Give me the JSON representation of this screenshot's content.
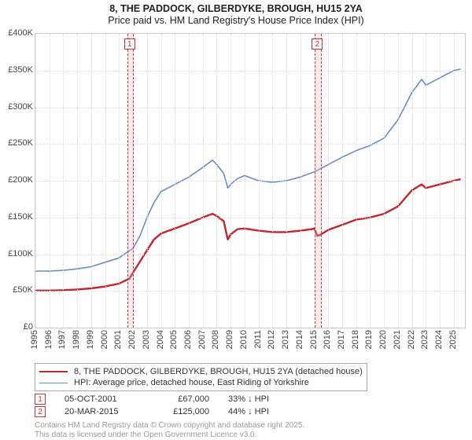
{
  "title": "8, THE PADDOCK, GILBERDYKE, BROUGH, HU15 2YA",
  "subtitle": "Price paid vs. HM Land Registry's House Price Index (HPI)",
  "chart": {
    "type": "line",
    "background_color": "#ffffff",
    "grid_color": "#dcdcdc",
    "axis_color": "#cccccc",
    "title_fontsize": 12.5,
    "label_fontsize": 11,
    "xlim": [
      1995,
      2025.8
    ],
    "ylim": [
      0,
      400000
    ],
    "ytick_step": 50000,
    "xticks": [
      1995,
      1996,
      1997,
      1998,
      1999,
      2000,
      2001,
      2002,
      2003,
      2004,
      2005,
      2006,
      2007,
      2008,
      2009,
      2010,
      2011,
      2012,
      2013,
      2014,
      2015,
      2016,
      2017,
      2018,
      2019,
      2020,
      2021,
      2022,
      2023,
      2024,
      2025
    ],
    "yticks": [
      "£0",
      "£50K",
      "£100K",
      "£150K",
      "£200K",
      "£250K",
      "£300K",
      "£350K",
      "£400K"
    ],
    "markers": [
      {
        "id": "1",
        "x": 2001.76,
        "width_years": 0.35
      },
      {
        "id": "2",
        "x": 2015.22,
        "width_years": 0.35
      }
    ]
  },
  "series": {
    "property": {
      "label": "8, THE PADDOCK, GILBERDYKE, BROUGH, HU15 2YA (detached house)",
      "color": "#c1272d",
      "width": 2.4,
      "data": [
        [
          1995,
          50500
        ],
        [
          1996,
          50500
        ],
        [
          1997,
          51000
        ],
        [
          1998,
          52000
        ],
        [
          1999,
          53500
        ],
        [
          2000,
          56000
        ],
        [
          2001,
          60000
        ],
        [
          2001.76,
          67000
        ],
        [
          2002,
          75000
        ],
        [
          2002.5,
          90000
        ],
        [
          2003,
          105000
        ],
        [
          2003.5,
          120000
        ],
        [
          2004,
          128000
        ],
        [
          2005,
          135000
        ],
        [
          2006,
          142000
        ],
        [
          2007,
          150000
        ],
        [
          2007.7,
          155000
        ],
        [
          2008,
          152000
        ],
        [
          2008.5,
          145000
        ],
        [
          2008.8,
          120000
        ],
        [
          2009,
          127000
        ],
        [
          2009.5,
          134000
        ],
        [
          2010,
          135000
        ],
        [
          2011,
          132000
        ],
        [
          2012,
          130000
        ],
        [
          2013,
          130000
        ],
        [
          2014,
          132000
        ],
        [
          2014.8,
          134000
        ],
        [
          2015,
          135000
        ],
        [
          2015.22,
          125000
        ],
        [
          2015.4,
          126000
        ],
        [
          2016,
          133000
        ],
        [
          2017,
          140000
        ],
        [
          2018,
          147000
        ],
        [
          2019,
          150000
        ],
        [
          2020,
          155000
        ],
        [
          2021,
          165000
        ],
        [
          2022,
          187000
        ],
        [
          2022.7,
          195000
        ],
        [
          2023,
          190000
        ],
        [
          2024,
          195000
        ],
        [
          2025,
          200000
        ],
        [
          2025.5,
          202000
        ]
      ]
    },
    "hpi": {
      "label": "HPI: Average price, detached house, East Riding of Yorkshire",
      "color": "#6a8bc9",
      "width": 1.6,
      "data": [
        [
          1995,
          77000
        ],
        [
          1996,
          77000
        ],
        [
          1997,
          78000
        ],
        [
          1998,
          80000
        ],
        [
          1999,
          83000
        ],
        [
          2000,
          89000
        ],
        [
          2001,
          95000
        ],
        [
          2002,
          108000
        ],
        [
          2002.5,
          125000
        ],
        [
          2003,
          150000
        ],
        [
          2003.5,
          170000
        ],
        [
          2004,
          185000
        ],
        [
          2005,
          195000
        ],
        [
          2006,
          205000
        ],
        [
          2007,
          218000
        ],
        [
          2007.7,
          228000
        ],
        [
          2008,
          222000
        ],
        [
          2008.5,
          210000
        ],
        [
          2008.8,
          190000
        ],
        [
          2009,
          195000
        ],
        [
          2009.5,
          203000
        ],
        [
          2010,
          207000
        ],
        [
          2011,
          200000
        ],
        [
          2012,
          198000
        ],
        [
          2013,
          200000
        ],
        [
          2014,
          205000
        ],
        [
          2015,
          212000
        ],
        [
          2016,
          222000
        ],
        [
          2017,
          232000
        ],
        [
          2018,
          241000
        ],
        [
          2019,
          248000
        ],
        [
          2020,
          258000
        ],
        [
          2021,
          283000
        ],
        [
          2022,
          320000
        ],
        [
          2022.7,
          338000
        ],
        [
          2023,
          330000
        ],
        [
          2024,
          340000
        ],
        [
          2025,
          350000
        ],
        [
          2025.5,
          352000
        ]
      ]
    }
  },
  "legend": {
    "items": [
      {
        "ref": "property"
      },
      {
        "ref": "hpi"
      }
    ]
  },
  "events": [
    {
      "id": "1",
      "date": "05-OCT-2001",
      "price": "£67,000",
      "delta": "33% ↓ HPI"
    },
    {
      "id": "2",
      "date": "20-MAR-2015",
      "price": "£125,000",
      "delta": "44% ↓ HPI"
    }
  ],
  "footer": {
    "line1": "Contains HM Land Registry data © Crown copyright and database right 2025.",
    "line2": "This data is licensed under the Open Government Licence v3.0."
  }
}
